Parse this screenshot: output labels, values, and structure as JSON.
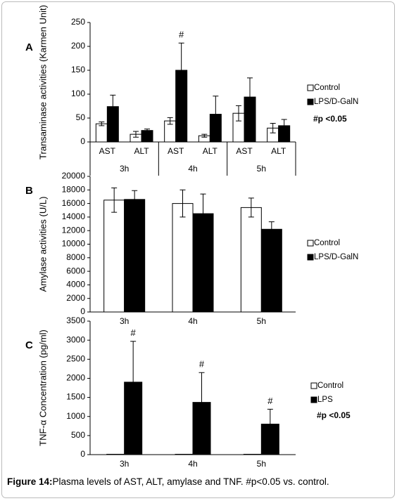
{
  "chart_data": [
    {
      "type": "bar",
      "panel": "A",
      "y_label": "Transaminase activities (Karmen Unit)",
      "categories": [
        "AST",
        "ALT",
        "AST",
        "ALT",
        "AST",
        "ALT"
      ],
      "groups": [
        "3h",
        "4h",
        "5h"
      ],
      "series": [
        {
          "name": "Control",
          "color": "#ffffff",
          "values": [
            38,
            16,
            44,
            13,
            60,
            29
          ],
          "errors": [
            4,
            6,
            7,
            3,
            16,
            10
          ]
        },
        {
          "name": "LPS/D-GalN",
          "color": "#000000",
          "values": [
            74,
            24,
            150,
            58,
            94,
            34
          ],
          "errors": [
            24,
            3,
            57,
            38,
            40,
            13
          ],
          "annotations": [
            null,
            null,
            "#",
            null,
            null,
            null
          ]
        }
      ],
      "ylim": [
        0,
        250
      ],
      "yticks": [
        0,
        50,
        100,
        150,
        200,
        250
      ],
      "significance": "#p <0.05"
    },
    {
      "type": "bar",
      "panel": "B",
      "y_label": "Amylase activities (U/L)",
      "categories": [
        "3h",
        "4h",
        "5h"
      ],
      "series": [
        {
          "name": "Control",
          "color": "#ffffff",
          "values": [
            16500,
            16000,
            15400
          ],
          "errors": [
            1800,
            2000,
            1400
          ]
        },
        {
          "name": "LPS/D-GalN",
          "color": "#000000",
          "values": [
            16600,
            14500,
            12200
          ],
          "errors": [
            1300,
            2900,
            1100
          ]
        }
      ],
      "ylim": [
        0,
        20000
      ],
      "yticks": [
        0,
        2000,
        4000,
        6000,
        8000,
        10000,
        12000,
        14000,
        16000,
        18000,
        20000
      ]
    },
    {
      "type": "bar",
      "panel": "C",
      "y_label": "TNF-α Concentration (pg/ml)",
      "categories": [
        "3h",
        "4h",
        "5h"
      ],
      "series": [
        {
          "name": "Control",
          "color": "#ffffff",
          "values": [
            10,
            10,
            10
          ],
          "errors": [
            0,
            0,
            0
          ]
        },
        {
          "name": "LPS",
          "color": "#000000",
          "values": [
            1900,
            1370,
            800
          ],
          "errors": [
            1070,
            780,
            390
          ],
          "annotations": [
            "#",
            "#",
            "#"
          ]
        }
      ],
      "ylim": [
        0,
        3500
      ],
      "yticks": [
        0,
        500,
        1000,
        1500,
        2000,
        2500,
        3000,
        3500
      ],
      "significance": "#p <0.05"
    }
  ],
  "caption": {
    "label": "Figure 14:",
    "text": "Plasma levels of AST, ALT, amylase and TNF. #p<0.05 vs. control."
  }
}
